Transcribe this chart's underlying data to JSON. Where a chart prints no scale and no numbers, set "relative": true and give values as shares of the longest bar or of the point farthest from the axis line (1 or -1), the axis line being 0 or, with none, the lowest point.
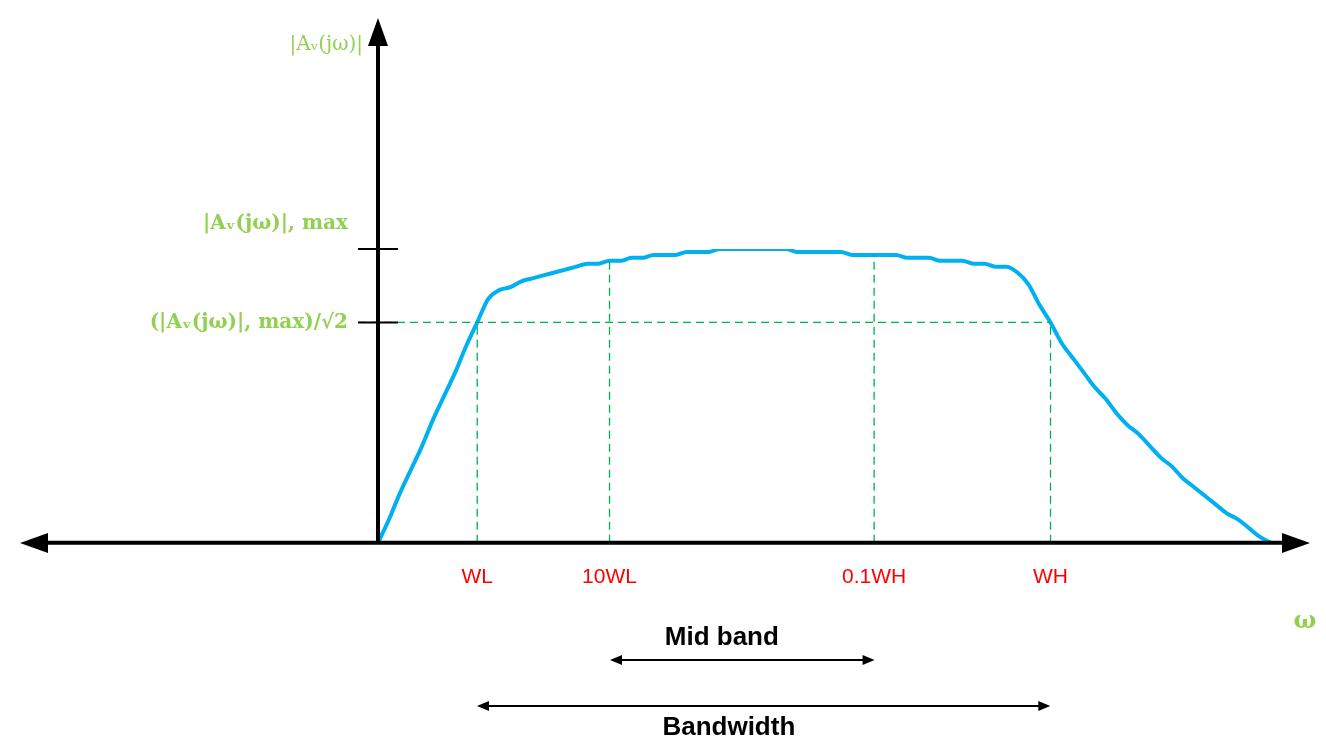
{
  "chart_data": {
    "type": "line",
    "relative": true,
    "xlabel": "ω",
    "marker": "none",
    "line_style": "solid",
    "grid": false,
    "legend": false,
    "categories": [
      null,
      null,
      null,
      null,
      null,
      null,
      null,
      null,
      null,
      "WL",
      null,
      null,
      null,
      null,
      null,
      null,
      null,
      null,
      null,
      null,
      null,
      "10WL",
      null,
      null,
      null,
      null,
      null,
      null,
      null,
      null,
      null,
      null,
      null,
      null,
      null,
      null,
      null,
      null,
      null,
      null,
      null,
      null,
      null,
      null,
      null,
      "0.1WH",
      null,
      null,
      null,
      null,
      null,
      null,
      null,
      null,
      null,
      null,
      null,
      null,
      null,
      null,
      null,
      "WH",
      null,
      null,
      null,
      null,
      null,
      null,
      null,
      null,
      null,
      null,
      null,
      null,
      null,
      null,
      null,
      null,
      null,
      null,
      null,
      null
    ],
    "series": [
      {
        "color": "#00b0f0",
        "values": [
          0,
          0.08,
          0.17,
          0.25,
          0.33,
          0.42,
          0.5,
          0.58,
          0.67,
          0.75,
          0.83,
          0.86,
          0.87,
          0.89,
          0.9,
          0.91,
          0.92,
          0.93,
          0.94,
          0.95,
          0.95,
          0.96,
          0.96,
          0.97,
          0.97,
          0.98,
          0.98,
          0.98,
          0.99,
          0.99,
          0.99,
          1,
          1,
          1,
          1,
          1,
          1,
          1,
          0.99,
          0.99,
          0.99,
          0.99,
          0.99,
          0.98,
          0.98,
          0.98,
          0.98,
          0.98,
          0.97,
          0.97,
          0.97,
          0.96,
          0.96,
          0.96,
          0.95,
          0.95,
          0.94,
          0.94,
          0.92,
          0.88,
          0.81,
          0.75,
          0.68,
          0.63,
          0.58,
          0.53,
          0.49,
          0.44,
          0.4,
          0.37,
          0.33,
          0.29,
          0.26,
          0.22,
          0.19,
          0.16,
          0.13,
          0.1,
          0.08,
          0.05,
          0.02,
          0
        ]
      }
    ],
    "ref_lines": [
      {
        "axis": "y",
        "value": 0.75,
        "label": "(|Aᵥ(jω)|, max)/√2",
        "color": "#00b050",
        "line_style": "dashed"
      },
      {
        "axis": "x",
        "value": "WL",
        "color": "#00b050",
        "line_style": "dashed"
      },
      {
        "axis": "x",
        "value": "10WL",
        "color": "#00b050",
        "line_style": "dashed"
      },
      {
        "axis": "x",
        "value": "0.1WH",
        "color": "#00b050",
        "line_style": "dashed"
      },
      {
        "axis": "x",
        "value": "WH",
        "color": "#00b050",
        "line_style": "dashed"
      }
    ],
    "annotations": [
      "|Aᵥ(jω)|",
      "|Aᵥ(jω)|, max",
      "Mid band",
      "Bandwidth"
    ]
  }
}
